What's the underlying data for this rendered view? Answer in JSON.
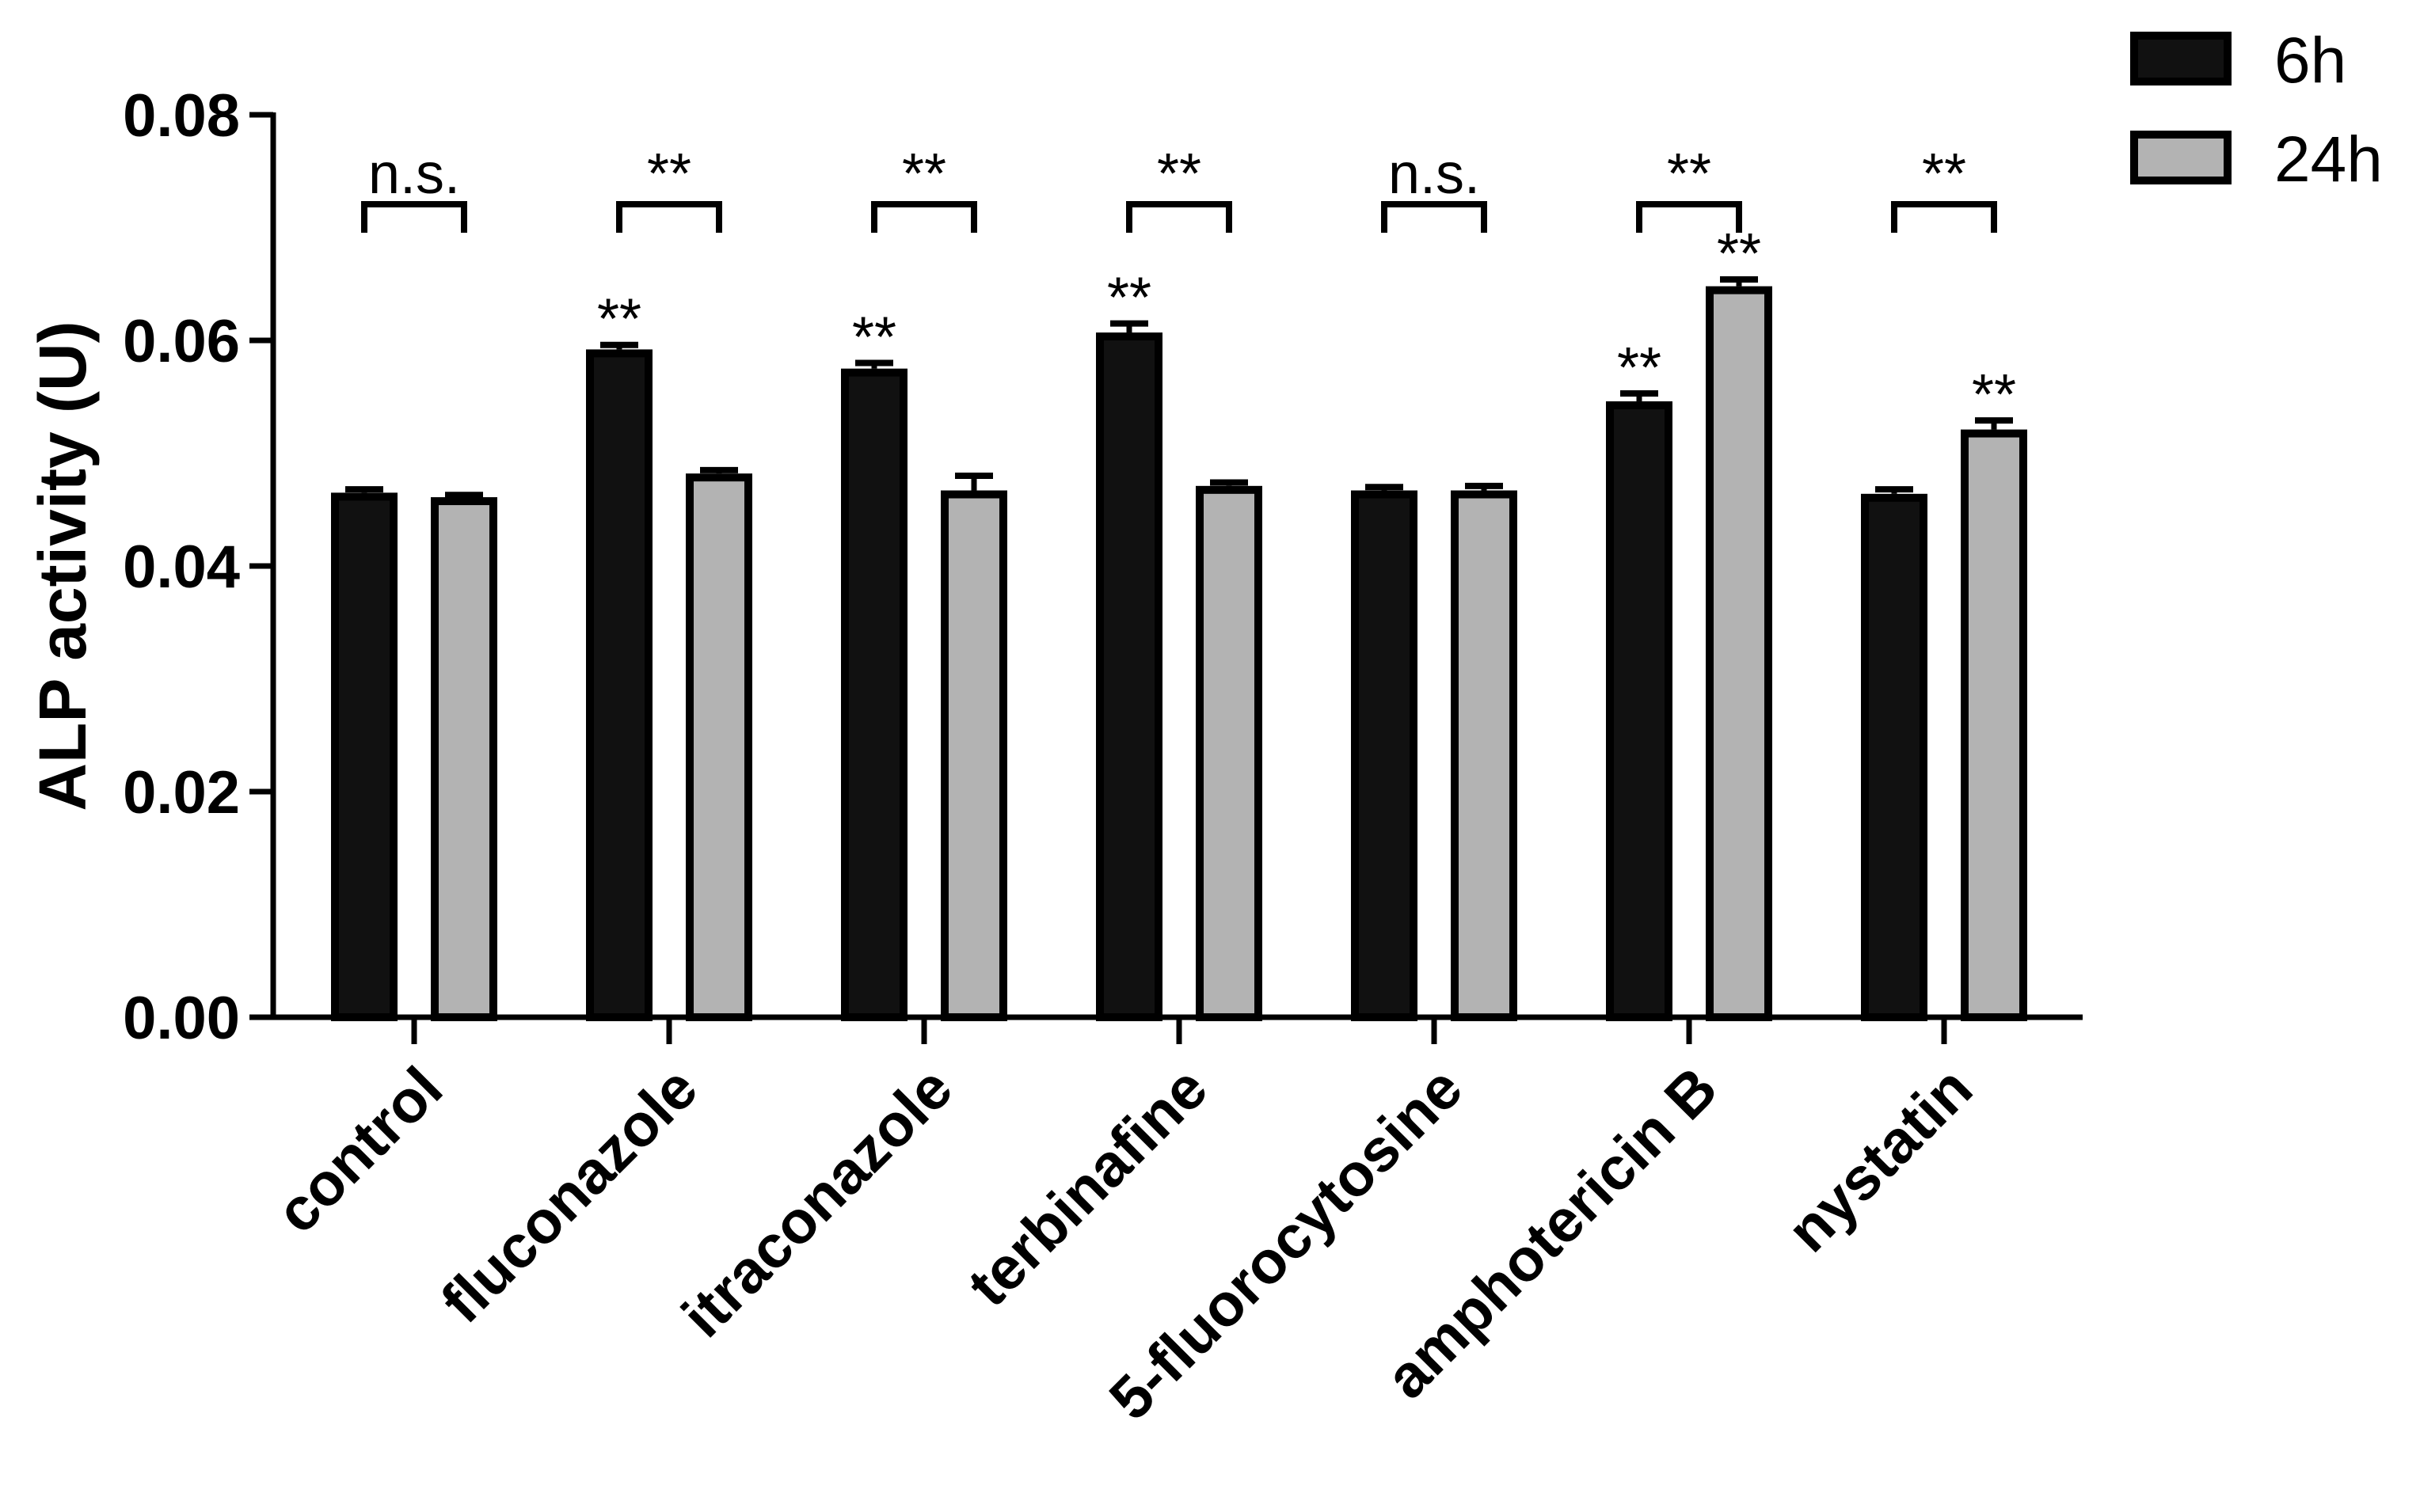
{
  "chart_data": {
    "type": "bar",
    "title": "",
    "xlabel": "",
    "ylabel": "ALP activity (U)",
    "ylim": [
      0,
      0.08
    ],
    "yticks": [
      "0.00",
      "0.02",
      "0.04",
      "0.06",
      "0.08"
    ],
    "ytick_values": [
      0,
      0.02,
      0.04,
      0.06,
      0.08
    ],
    "categories": [
      "control",
      "fluconazole",
      "itraconazole",
      "terbinafine",
      "5-fluorocytosine",
      "amphotericin B",
      "nystatin"
    ],
    "series": [
      {
        "name": "6h",
        "color": "#111111",
        "values": [
          0.0465,
          0.0592,
          0.0575,
          0.0607,
          0.0467,
          0.0546,
          0.0464
        ],
        "errors": [
          0.0003,
          0.0004,
          0.0005,
          0.0008,
          0.0003,
          0.0007,
          0.0004
        ],
        "marks": [
          "",
          "**",
          "**",
          "**",
          "",
          "**",
          ""
        ]
      },
      {
        "name": "24h",
        "color": "#b3b3b3",
        "values": [
          0.0461,
          0.0482,
          0.0467,
          0.0471,
          0.0467,
          0.0648,
          0.0521
        ],
        "errors": [
          0.0002,
          0.0003,
          0.0013,
          0.0003,
          0.0004,
          0.0006,
          0.0008
        ],
        "marks": [
          "",
          "",
          "",
          "",
          "",
          "**",
          "**"
        ]
      }
    ],
    "comparisons": [
      "n.s.",
      "**",
      "**",
      "**",
      "n.s.",
      "**",
      "**"
    ],
    "legend": {
      "position": "top-right",
      "entries": [
        "6h",
        "24h"
      ]
    }
  }
}
